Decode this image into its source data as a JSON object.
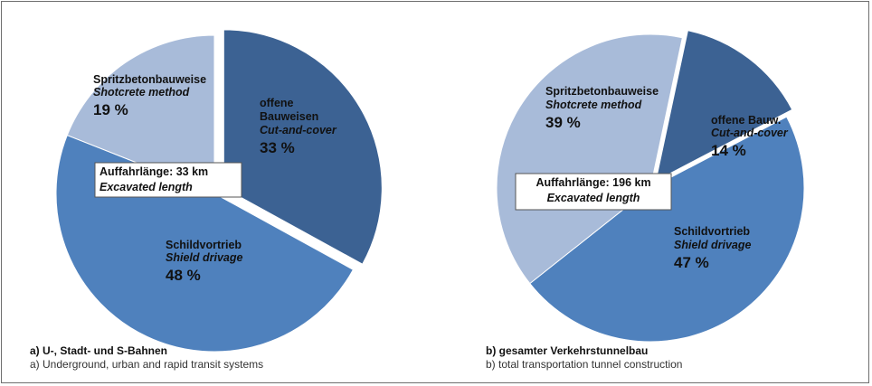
{
  "chart_data": [
    {
      "type": "pie",
      "slices": [
        {
          "label_de": "offene Bauweisen",
          "label_en": "Cut-and-cover",
          "value": 33,
          "value_text": "33 %",
          "color": "#3c6293"
        },
        {
          "label_de": "Schildvortrieb",
          "label_en": "Shield drivage",
          "value": 48,
          "value_text": "48 %",
          "color": "#4f81bd"
        },
        {
          "label_de": "Spritzbetonbauweise",
          "label_en": "Shotcrete method",
          "value": 19,
          "value_text": "19 %",
          "color": "#a8bbd9"
        }
      ],
      "center_label_de": "Auffahrlänge: 33 km",
      "center_label_en": "Excavated length",
      "caption_de": "a) U-, Stadt- und S-Bahnen",
      "caption_en": "a) Underground, urban and rapid transit systems"
    },
    {
      "type": "pie",
      "slices": [
        {
          "label_de": "offene Bauw.",
          "label_en": "Cut-and-cover",
          "value": 14,
          "value_text": "14 %",
          "color": "#3c6293"
        },
        {
          "label_de": "Schildvortrieb",
          "label_en": "Shield drivage",
          "value": 47,
          "value_text": "47 %",
          "color": "#4f81bd"
        },
        {
          "label_de": "Spritzbetonbauweise",
          "label_en": "Shotcrete method",
          "value": 39,
          "value_text": "39 %",
          "color": "#a8bbd9"
        }
      ],
      "center_label_de": "Auffahrlänge: 196 km",
      "center_label_en": "Excavated length",
      "caption_de": "b) gesamter Verkehrstunnelbau",
      "caption_en": "b) total transportation tunnel construction"
    }
  ]
}
